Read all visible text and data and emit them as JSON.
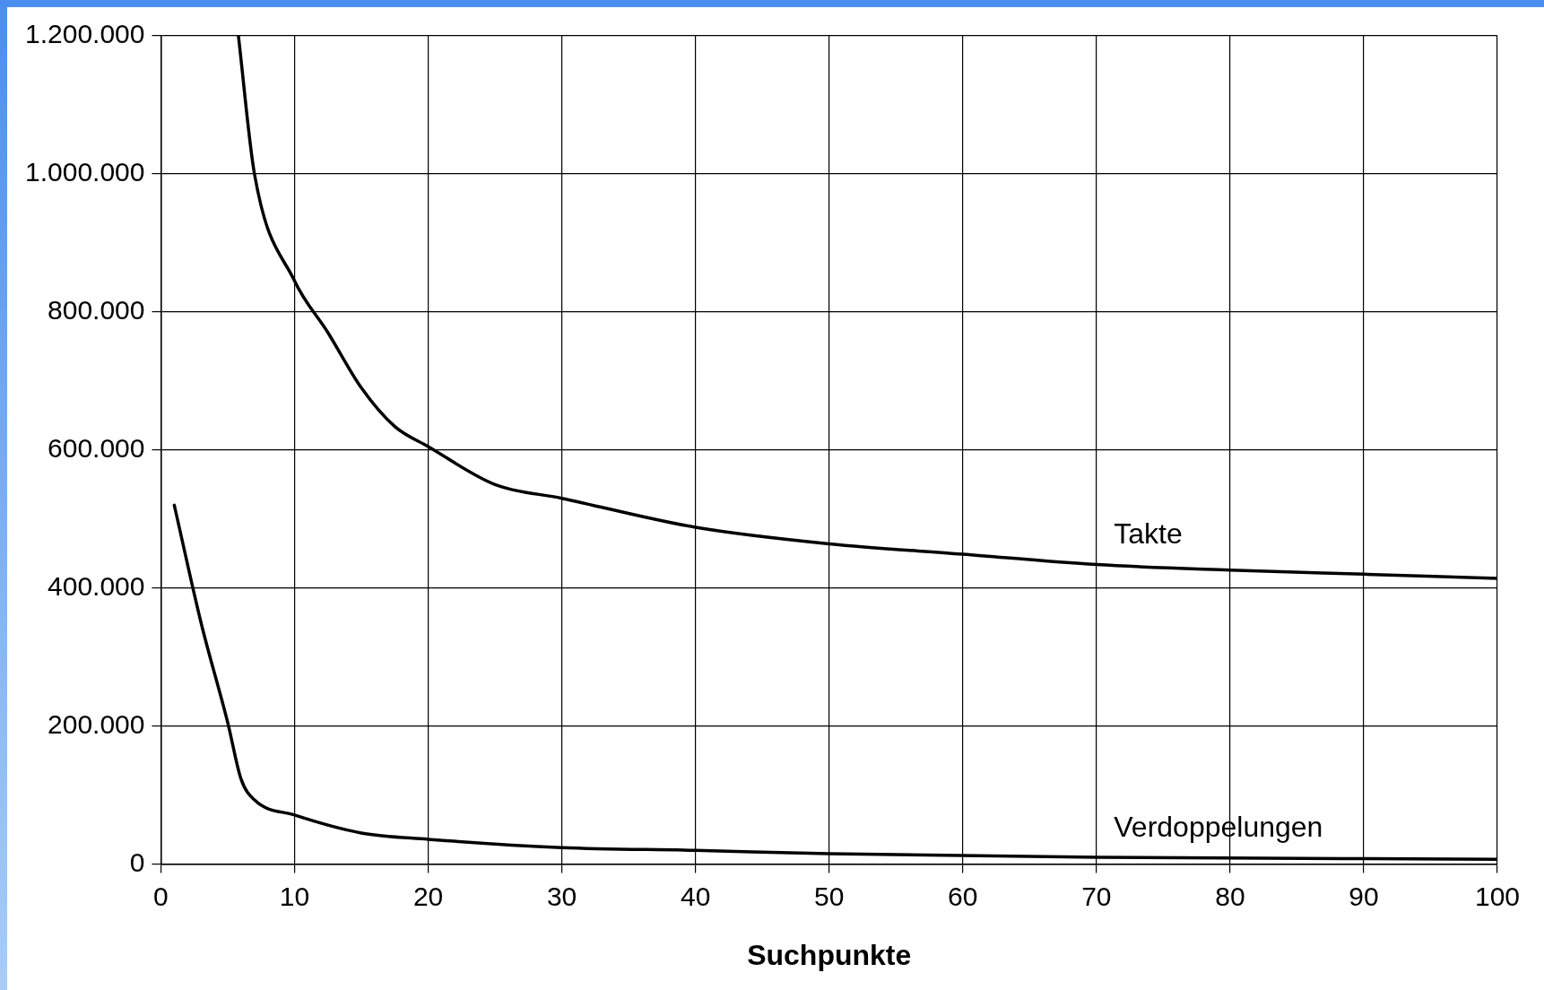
{
  "chart_data": {
    "type": "line",
    "xlabel": "Suchpunkte",
    "xlim": [
      0,
      100
    ],
    "xticks": [
      0,
      10,
      20,
      30,
      40,
      50,
      60,
      70,
      80,
      90,
      100
    ],
    "ylim": [
      0,
      1200000
    ],
    "yticks": [
      {
        "value": 0,
        "label": "0"
      },
      {
        "value": 200000,
        "label": "200.000"
      },
      {
        "value": 400000,
        "label": "400.000"
      },
      {
        "value": 600000,
        "label": "600.000"
      },
      {
        "value": 800000,
        "label": "800.000"
      },
      {
        "value": 1000000,
        "label": "1.000.000"
      },
      {
        "value": 1200000,
        "label": "1.200.000"
      }
    ],
    "grid": true,
    "legend": false,
    "marker": "none",
    "line_style": "solid",
    "series": [
      {
        "name": "Takte",
        "color": "#000000",
        "x": [
          5.8,
          7,
          10,
          12.5,
          15,
          17.5,
          20,
          25,
          30,
          40,
          50,
          60,
          70,
          80,
          90,
          100
        ],
        "values": [
          1200000,
          1000000,
          845000,
          770000,
          690000,
          634000,
          605000,
          550000,
          530000,
          488000,
          464000,
          449000,
          434000,
          426000,
          420000,
          414000
        ]
      },
      {
        "name": "Verdoppelungen",
        "color": "#000000",
        "x": [
          1,
          3,
          5,
          6,
          7,
          10,
          15,
          20,
          30,
          40,
          50,
          70,
          100
        ],
        "values": [
          520000,
          350000,
          205000,
          123000,
          93000,
          71000,
          45000,
          36000,
          24000,
          20000,
          15000,
          10000,
          7000
        ]
      }
    ]
  }
}
